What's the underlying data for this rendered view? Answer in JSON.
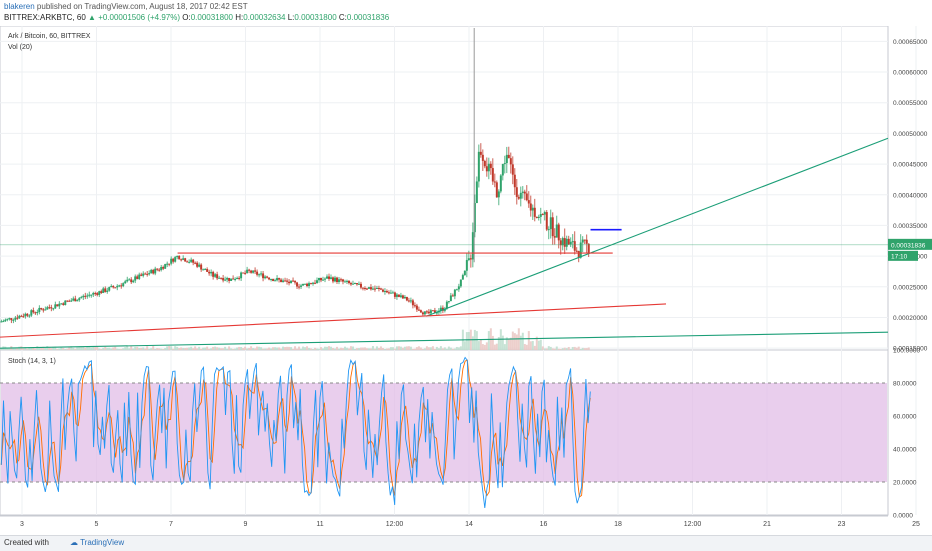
{
  "header": {
    "user": "blakeren",
    "published": "published on TradingView.com, August 18, 2017 02:42 EST",
    "ticker": "BITTREX:ARKBTC, 60",
    "change": "+0.00001506 (+4.97%)",
    "o_label": "O:",
    "o_val": "0.00031800",
    "h_label": "H:",
    "h_val": "0.00032634",
    "l_label": "L:",
    "l_val": "0.00031800",
    "c_label": "C:",
    "c_val": "0.00031836"
  },
  "legend": {
    "symbol": "Ark / Bitcoin, 60, BITTREX",
    "volume": "Vol (20)",
    "stoch": "Stoch (14, 3, 1)"
  },
  "price_axis": {
    "ticks": [
      "0.00065000",
      "0.00060000",
      "0.00055000",
      "0.00050000",
      "0.00045000",
      "0.00040000",
      "0.00035000",
      "0.00030000",
      "0.00025000",
      "0.00020000",
      "0.00015000"
    ],
    "last_price": "0.00031836",
    "countdown": "17:10"
  },
  "stoch_axis": {
    "ticks": [
      "100.0000",
      "80.0000",
      "60.0000",
      "40.0000",
      "20.0000",
      "0.0000"
    ]
  },
  "time_axis": {
    "ticks": [
      "3",
      "5",
      "7",
      "9",
      "11",
      "12:00",
      "14",
      "16",
      "18",
      "12:00",
      "21",
      "23",
      "25"
    ]
  },
  "footer": {
    "made": "Created with",
    "brand": "TradingView"
  },
  "colors": {
    "up": "#2fa36b",
    "down": "#c0392b",
    "stoch_k": "#2196f3",
    "stoch_d": "#ff6d00",
    "band": "#e1bee7",
    "trend_green": "#1b9e77",
    "trend_red": "#e53935",
    "blue_line": "#1a1aff"
  },
  "chart_data": [
    {
      "type": "candlestick",
      "title": "Ark / Bitcoin, 60, BITTREX",
      "ylim": [
        0.000147,
        0.000675
      ],
      "x_ticks": [
        "3",
        "5",
        "7",
        "9",
        "11",
        "12:00",
        "14",
        "16",
        "18",
        "12:00",
        "21",
        "23",
        "25"
      ],
      "close_points": [
        {
          "x": 0,
          "y": 0.000193
        },
        {
          "x": 8,
          "y": 0.00021
        },
        {
          "x": 16,
          "y": 0.000228
        },
        {
          "x": 24,
          "y": 0.000245
        },
        {
          "x": 30,
          "y": 0.000262
        },
        {
          "x": 36,
          "y": 0.00028
        },
        {
          "x": 40,
          "y": 0.0003
        },
        {
          "x": 44,
          "y": 0.000288
        },
        {
          "x": 48,
          "y": 0.000268
        },
        {
          "x": 52,
          "y": 0.000262
        },
        {
          "x": 56,
          "y": 0.000275
        },
        {
          "x": 62,
          "y": 0.000262
        },
        {
          "x": 68,
          "y": 0.000252
        },
        {
          "x": 74,
          "y": 0.000265
        },
        {
          "x": 80,
          "y": 0.000252
        },
        {
          "x": 86,
          "y": 0.000245
        },
        {
          "x": 92,
          "y": 0.000228
        },
        {
          "x": 96,
          "y": 0.000205
        },
        {
          "x": 100,
          "y": 0.000215
        },
        {
          "x": 104,
          "y": 0.00026
        },
        {
          "x": 106,
          "y": 0.0003
        },
        {
          "x": 107,
          "y": 0.000395
        },
        {
          "x": 108,
          "y": 0.00048
        },
        {
          "x": 110,
          "y": 0.00044
        },
        {
          "x": 112,
          "y": 0.000405
        },
        {
          "x": 114,
          "y": 0.00047
        },
        {
          "x": 116,
          "y": 0.000415
        },
        {
          "x": 118,
          "y": 0.00039
        },
        {
          "x": 121,
          "y": 0.00037
        },
        {
          "x": 124,
          "y": 0.00035
        },
        {
          "x": 127,
          "y": 0.000325
        },
        {
          "x": 130,
          "y": 0.00031
        },
        {
          "x": 133,
          "y": 0.000318
        }
      ],
      "trendlines": [
        {
          "name": "support-green",
          "color": "#1b9e77",
          "from": {
            "x": 96,
            "y": 0.000202
          },
          "to": {
            "x": 200,
            "y": 0.000492
          }
        },
        {
          "name": "resistance-red",
          "color": "#e53935",
          "from": {
            "x": 40,
            "y": 0.000305
          },
          "to": {
            "x": 138,
            "y": 0.000305
          }
        },
        {
          "name": "long-red",
          "color": "#e53935",
          "from": {
            "x": 0,
            "y": 0.000168
          },
          "to": {
            "x": 150,
            "y": 0.000222
          }
        },
        {
          "name": "long-green",
          "color": "#1b9e77",
          "from": {
            "x": 0,
            "y": 0.00015
          },
          "to": {
            "x": 200,
            "y": 0.000176
          }
        },
        {
          "name": "target-blue",
          "color": "#1a1aff",
          "from": {
            "x": 133,
            "y": 0.000343
          },
          "to": {
            "x": 140,
            "y": 0.000343
          }
        }
      ],
      "last_price": 0.00031836
    },
    {
      "type": "line",
      "title": "Stoch (14, 3, 1)",
      "ylim": [
        0,
        100
      ],
      "band": [
        20,
        80
      ],
      "series": [
        {
          "name": "%K",
          "color": "#2196f3"
        },
        {
          "name": "%D",
          "color": "#ff6d00"
        }
      ]
    }
  ]
}
